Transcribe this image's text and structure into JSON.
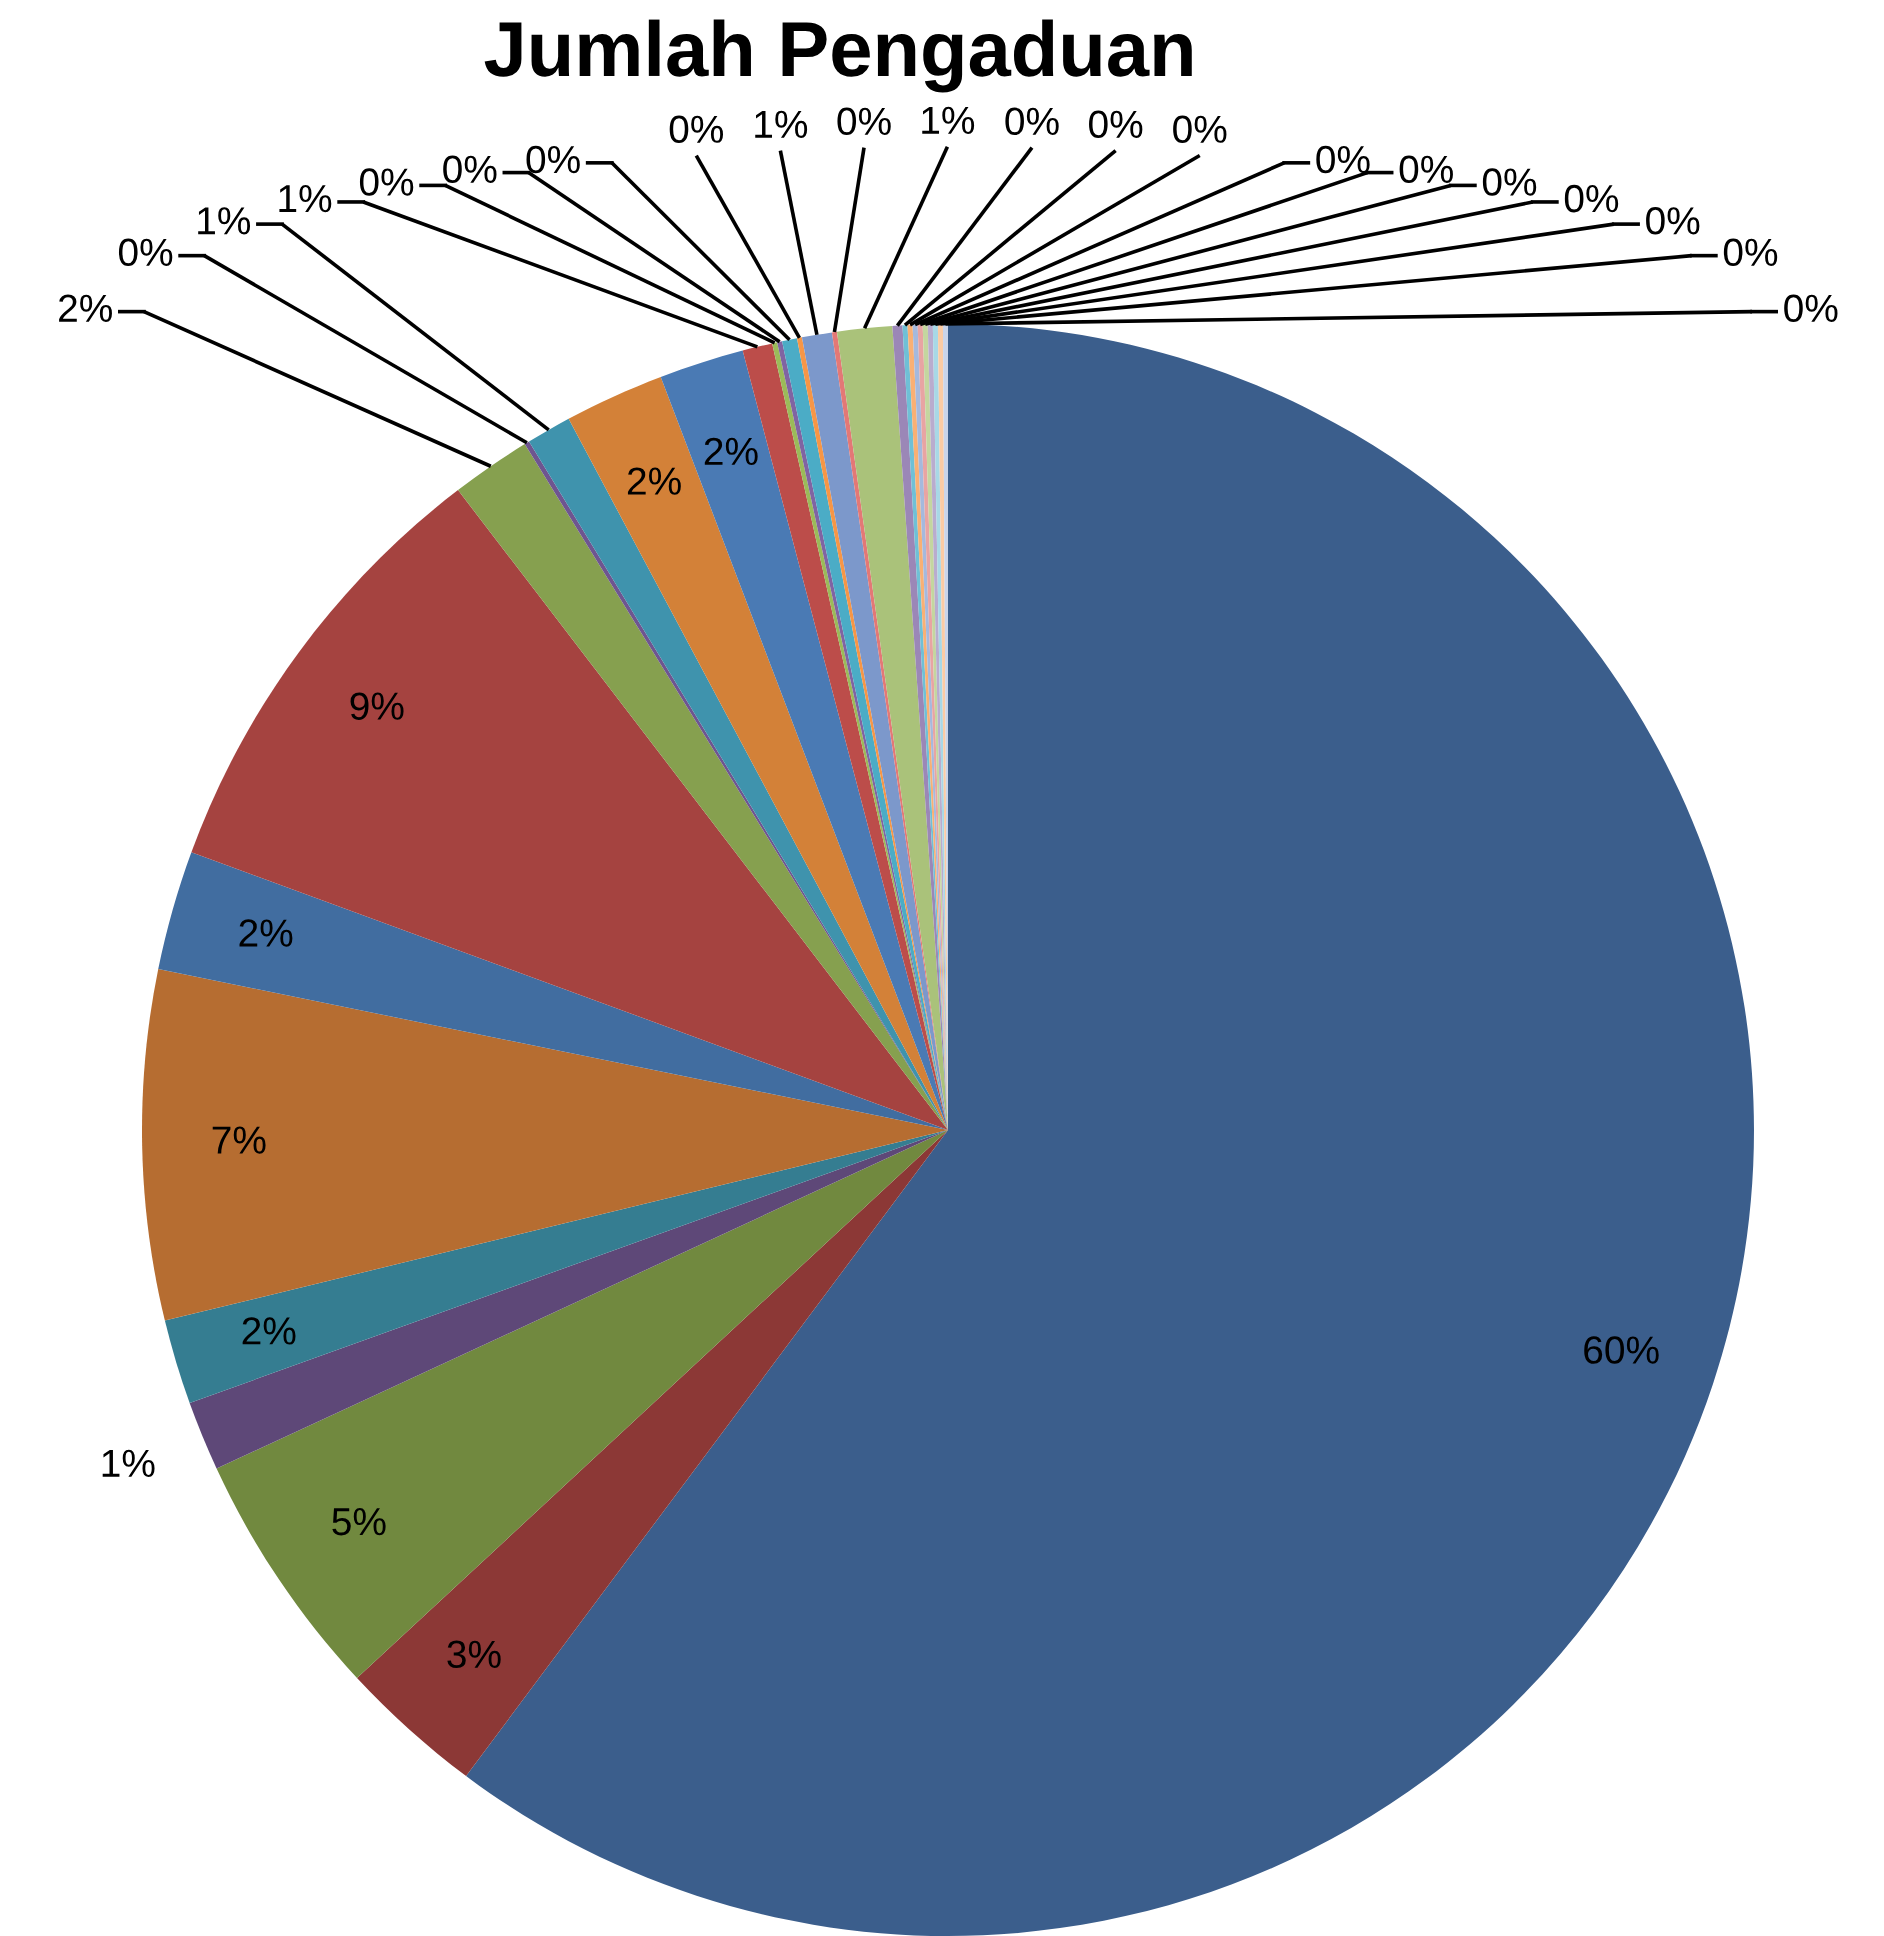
{
  "chart_data": {
    "type": "pie",
    "title": "Jumlah Pengaduan",
    "categories": [
      null,
      null,
      null,
      null,
      null,
      null,
      null,
      null,
      null,
      null,
      null,
      null,
      null,
      null,
      null,
      null,
      null,
      null,
      null,
      null,
      null,
      null,
      null,
      null,
      null,
      null,
      null,
      null,
      null,
      null,
      null
    ],
    "values": [
      60.2,
      2.9,
      5.0,
      1.4,
      1.7,
      7.0,
      2.4,
      9.0,
      1.6,
      0.1,
      0.9,
      2.0,
      1.7,
      0.6,
      0.1,
      0.1,
      0.3,
      0.1,
      0.6,
      0.1,
      1.1,
      0.2,
      0.1,
      0.1,
      0.1,
      0.1,
      0.1,
      0.1,
      0.1,
      0.1,
      0.1
    ],
    "colors": [
      "#3b5e8c",
      "#8c3836",
      "#71893f",
      "#5e4878",
      "#357d91",
      "#b66d31",
      "#416da0",
      "#a54340",
      "#86a04f",
      "#6e5590",
      "#3f93ad",
      "#d38138",
      "#4a7ab4",
      "#bc4d4a",
      "#9bbb59",
      "#8064a2",
      "#4bacc6",
      "#f79646",
      "#7c98cb",
      "#e37876",
      "#aac27a",
      "#9b87b7",
      "#6fc0d6",
      "#f9b074",
      "#a5b9dd",
      "#e8a4a3",
      "#c4d69f",
      "#b9acce",
      "#a8d8e6",
      "#fbcba4",
      "#c9d4ea"
    ],
    "value_labels": [
      "60%",
      "3%",
      "5%",
      "1%",
      "2%",
      "7%",
      "2%",
      "9%",
      "2%",
      "0%",
      "1%",
      "2%",
      "2%",
      "1%",
      "0%",
      "0%",
      "0%",
      "0%",
      "1%",
      "0%",
      "1%",
      "0%",
      "0%",
      "0%",
      "0%",
      "0%",
      "0%",
      "0%",
      "0%",
      "0%",
      "0%"
    ]
  }
}
